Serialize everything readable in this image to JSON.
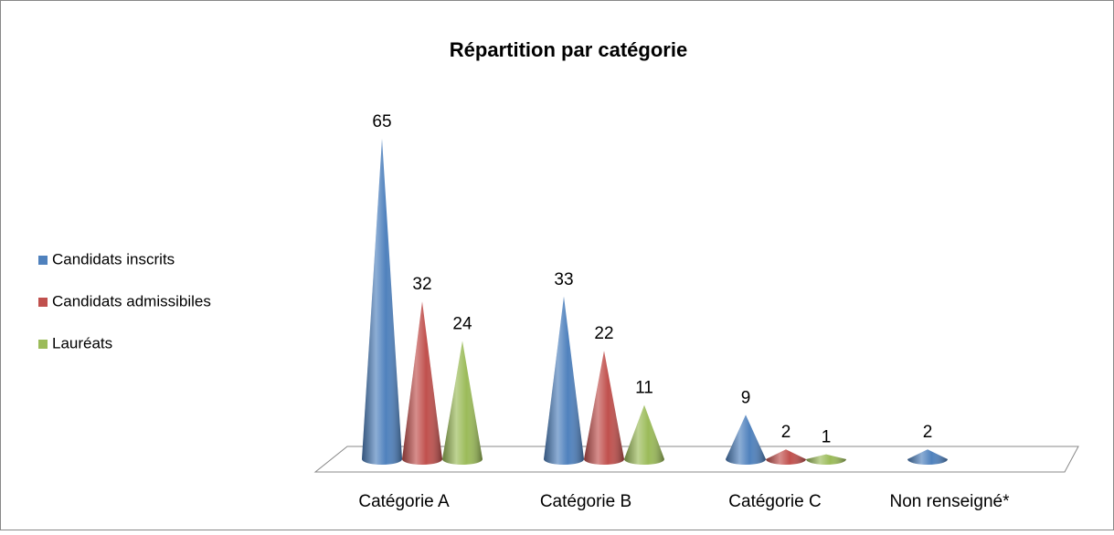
{
  "chart_data": {
    "type": "cone3d",
    "title": "Répartition par catégorie",
    "categories": [
      "Catégorie A",
      "Catégorie B",
      "Catégorie C",
      "Non renseigné*"
    ],
    "series": [
      {
        "name": "Candidats inscrits",
        "color": "#4f81bd",
        "values": [
          65,
          33,
          9,
          2
        ]
      },
      {
        "name": "Candidats admissibiles",
        "color": "#c0504d",
        "values": [
          32,
          22,
          2,
          null
        ]
      },
      {
        "name": "Lauréats",
        "color": "#9bbb59",
        "values": [
          24,
          11,
          1,
          null
        ]
      }
    ],
    "legend": "left"
  }
}
